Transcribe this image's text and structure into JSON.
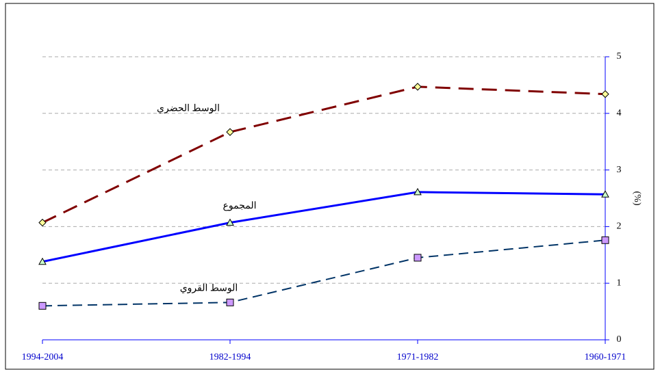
{
  "chart_data": {
    "type": "line",
    "categories": [
      "1994-2004",
      "1982-1994",
      "1971-1982",
      "1960-1971"
    ],
    "y_label": "(%)",
    "ylim": [
      0,
      5
    ],
    "yticks": [
      0,
      1,
      2,
      3,
      4,
      5
    ],
    "grid": true,
    "y_axis_side": "right",
    "series": [
      {
        "name": "الوسط الحضري",
        "color": "#800000",
        "marker": "diamond",
        "marker_color": "#ffff99",
        "dash": "22,12",
        "width": 3,
        "values": [
          2.07,
          3.67,
          4.47,
          4.34
        ]
      },
      {
        "name": "المجموع",
        "color": "#0000ff",
        "marker": "triangle",
        "marker_color": "#ccffcc",
        "dash": "none",
        "width": 3,
        "values": [
          1.38,
          2.07,
          2.61,
          2.57
        ]
      },
      {
        "name": "الوسط القروي",
        "color": "#003366",
        "marker": "square",
        "marker_color": "#cc99ff",
        "dash": "14,8",
        "width": 2,
        "values": [
          0.6,
          0.66,
          1.45,
          1.76
        ]
      }
    ]
  }
}
